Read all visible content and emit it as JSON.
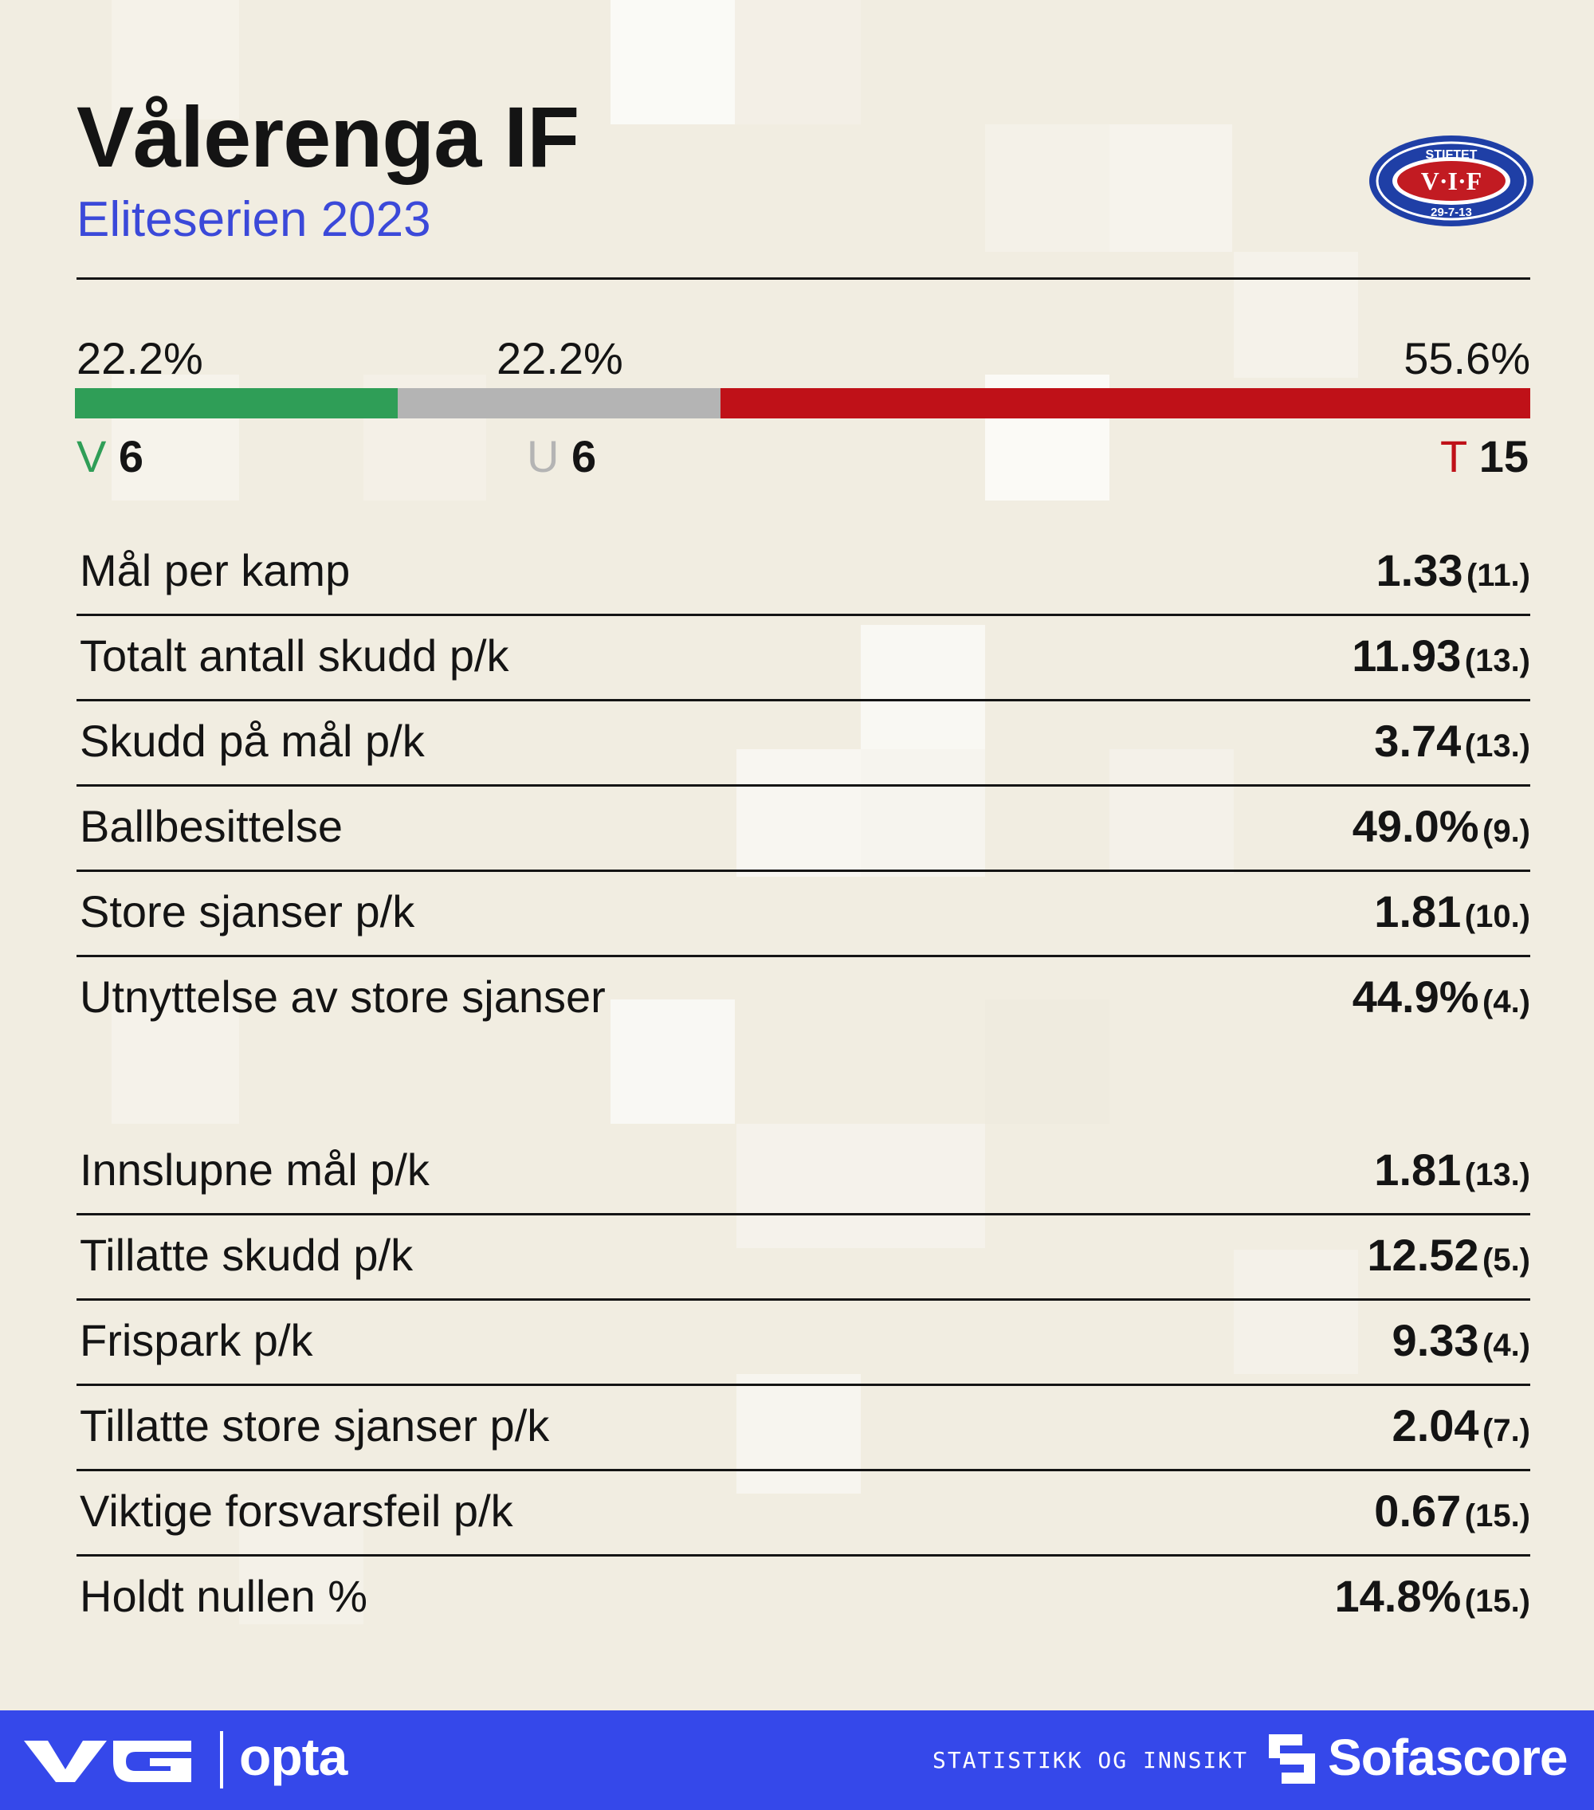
{
  "header": {
    "title": "Vålerenga IF",
    "subtitle": "Eliteserien 2023"
  },
  "logo": {
    "icon": "club-crest-icon",
    "top_text": "STIFTET",
    "center_text": "V·I·F",
    "bottom_text": "29-7-13",
    "colors": {
      "blue": "#1f3fa6",
      "red": "#c21b22"
    }
  },
  "results": {
    "wins": {
      "label": "V",
      "count": "6",
      "pct": "22.2%",
      "share": 0.222,
      "color": "#2f9e57"
    },
    "draws": {
      "label": "U",
      "count": "6",
      "pct": "22.2%",
      "share": 0.222,
      "color": "#b4b4b4"
    },
    "losses": {
      "label": "T",
      "count": "15",
      "pct": "55.6%",
      "share": 0.556,
      "color": "#bf1118"
    }
  },
  "attack_stats": [
    {
      "label": "Mål per kamp",
      "value": "1.33",
      "rank": "(11.)"
    },
    {
      "label": "Totalt antall skudd p/k",
      "value": "11.93",
      "rank": "(13.)"
    },
    {
      "label": "Skudd på mål p/k",
      "value": "3.74",
      "rank": "(13.)"
    },
    {
      "label": "Ballbesittelse",
      "value": "49.0%",
      "rank": "(9.)"
    },
    {
      "label": "Store sjanser p/k",
      "value": "1.81",
      "rank": "(10.)"
    },
    {
      "label": "Utnyttelse av store sjanser",
      "value": "44.9%",
      "rank": "(4.)"
    }
  ],
  "defence_stats": [
    {
      "label": "Innslupne mål p/k",
      "value": "1.81",
      "rank": "(13.)"
    },
    {
      "label": "Tillatte skudd p/k",
      "value": "12.52",
      "rank": "(5.)"
    },
    {
      "label": "Frispark p/k",
      "value": "9.33",
      "rank": "(4.)"
    },
    {
      "label": "Tillatte store sjanser p/k",
      "value": "2.04",
      "rank": "(7.)"
    },
    {
      "label": "Viktige forsvarsfeil p/k",
      "value": "0.67",
      "rank": "(15.)"
    },
    {
      "label": "Holdt nullen %",
      "value": "14.8%",
      "rank": "(15.)"
    }
  ],
  "footer": {
    "vg_logo": "VG",
    "opta_logo": "opta",
    "tagline": "STATISTIKK OG INNSIKT",
    "sofascore_logo": "Sofascore",
    "sofascore_icon": "sofascore-icon",
    "background": "#3548ea"
  }
}
